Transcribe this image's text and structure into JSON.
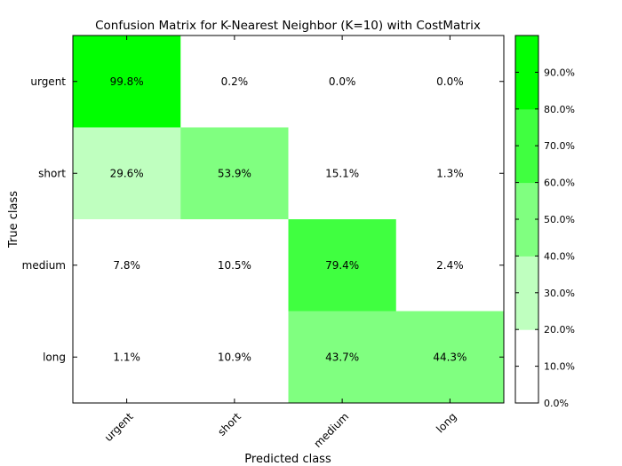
{
  "chart_data": {
    "type": "heatmap",
    "title": "Confusion Matrix for K-Nearest Neighbor (K=10) with CostMatrix",
    "xlabel": "Predicted class",
    "ylabel": "True class",
    "x_categories": [
      "urgent",
      "short",
      "medium",
      "long"
    ],
    "y_categories": [
      "urgent",
      "short",
      "medium",
      "long"
    ],
    "values": [
      [
        99.8,
        0.2,
        0.0,
        0.0
      ],
      [
        29.6,
        53.9,
        15.1,
        1.3
      ],
      [
        7.8,
        10.5,
        79.4,
        2.4
      ],
      [
        1.1,
        10.9,
        43.7,
        44.3
      ]
    ],
    "cell_labels": [
      [
        "99.8%",
        "0.2%",
        "0.0%",
        "0.0%"
      ],
      [
        "29.6%",
        "53.9%",
        "15.1%",
        "1.3%"
      ],
      [
        "7.8%",
        "10.5%",
        "79.4%",
        "2.4%"
      ],
      [
        "1.1%",
        "10.9%",
        "43.7%",
        "44.3%"
      ]
    ],
    "colorbar": {
      "range": [
        0,
        100
      ],
      "tick_values": [
        0,
        10,
        20,
        30,
        40,
        50,
        60,
        70,
        80,
        90
      ],
      "tick_labels": [
        "0.0%",
        "10.0%",
        "20.0%",
        "30.0%",
        "40.0%",
        "50.0%",
        "60.0%",
        "70.0%",
        "80.0%",
        "90.0%"
      ],
      "bands": [
        {
          "from": 0,
          "to": 20,
          "color": "#ffffff"
        },
        {
          "from": 20,
          "to": 40,
          "color": "#bfffbf"
        },
        {
          "from": 40,
          "to": 60,
          "color": "#80ff80"
        },
        {
          "from": 60,
          "to": 80,
          "color": "#40ff40"
        },
        {
          "from": 80,
          "to": 100,
          "color": "#00ff00"
        }
      ]
    },
    "grid": false
  }
}
